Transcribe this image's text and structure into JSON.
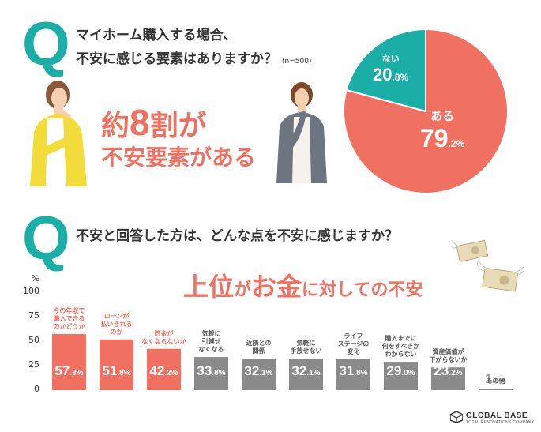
{
  "q1": {
    "mark": "Q",
    "line1": "マイホーム購入する場合、",
    "line2": "不安に感じる要素はありますか？",
    "sample": "(n=500)"
  },
  "headline": {
    "prefix": "約",
    "number": "8",
    "suffix": "割が",
    "line2": "不安要素がある"
  },
  "pie": {
    "slices": [
      {
        "label": "ある",
        "value_int": "79",
        "value_dec": ".2%",
        "value": 79.2,
        "color": "#f07161"
      },
      {
        "label": "ない",
        "value_int": "20",
        "value_dec": ".8%",
        "value": 20.8,
        "color": "#1aaea6"
      }
    ]
  },
  "q2": {
    "mark": "Q",
    "text": "不安と回答した方は、どんな点を不安に感じますか？"
  },
  "ranking_headline": {
    "p1": "上位",
    "p2": "が",
    "p3": "お金",
    "p4": "に対しての不安"
  },
  "chart_data": {
    "type": "bar",
    "ylabel": "%",
    "ylim": [
      0,
      100
    ],
    "yticks": [
      "0",
      "25",
      "50",
      "75",
      "100"
    ],
    "categories": [
      "今の年収で購入できるのかどうか",
      "ローンが払いきれるのか",
      "貯金がなくならないか",
      "気軽に引越せなくなる",
      "近隣との関係",
      "気軽に手放せない",
      "ライフステージの変化",
      "購入までに何をすべきかわからない",
      "資産価値が下がらないか",
      "その他"
    ],
    "category_lines": [
      [
        "今の年収で",
        "購入できる",
        "のかどうか"
      ],
      [
        "ローンが",
        "払いきれる",
        "のか"
      ],
      [
        "貯金が",
        "なくならないか"
      ],
      [
        "気軽に",
        "引越せ",
        "なくなる"
      ],
      [
        "近隣との",
        "関係"
      ],
      [
        "気軽に",
        "手放せない"
      ],
      [
        "ライフ",
        "ステージの",
        "変化"
      ],
      [
        "購入までに",
        "何をすべきか",
        "わからない"
      ],
      [
        "資産価値が",
        "下がらないか"
      ],
      [
        "その他"
      ]
    ],
    "values": [
      57.3,
      51.8,
      42.2,
      33.8,
      32.1,
      32.1,
      31.8,
      29.0,
      23.2,
      1.5
    ],
    "value_labels": [
      [
        "57",
        ".3%"
      ],
      [
        "51",
        ".8%"
      ],
      [
        "42",
        ".2%"
      ],
      [
        "33",
        ".8%"
      ],
      [
        "32",
        ".1%"
      ],
      [
        "32",
        ".1%"
      ],
      [
        "31",
        ".8%"
      ],
      [
        "29",
        ".0%"
      ],
      [
        "23",
        ".2%"
      ],
      [
        "1",
        ".5%"
      ]
    ],
    "colors": {
      "top": "#f07161",
      "other": "#8a8a8a"
    }
  },
  "logo": {
    "title": "GLOBAL BASE",
    "subtitle": "TOTAL RENOVATIONS COMPANY"
  }
}
